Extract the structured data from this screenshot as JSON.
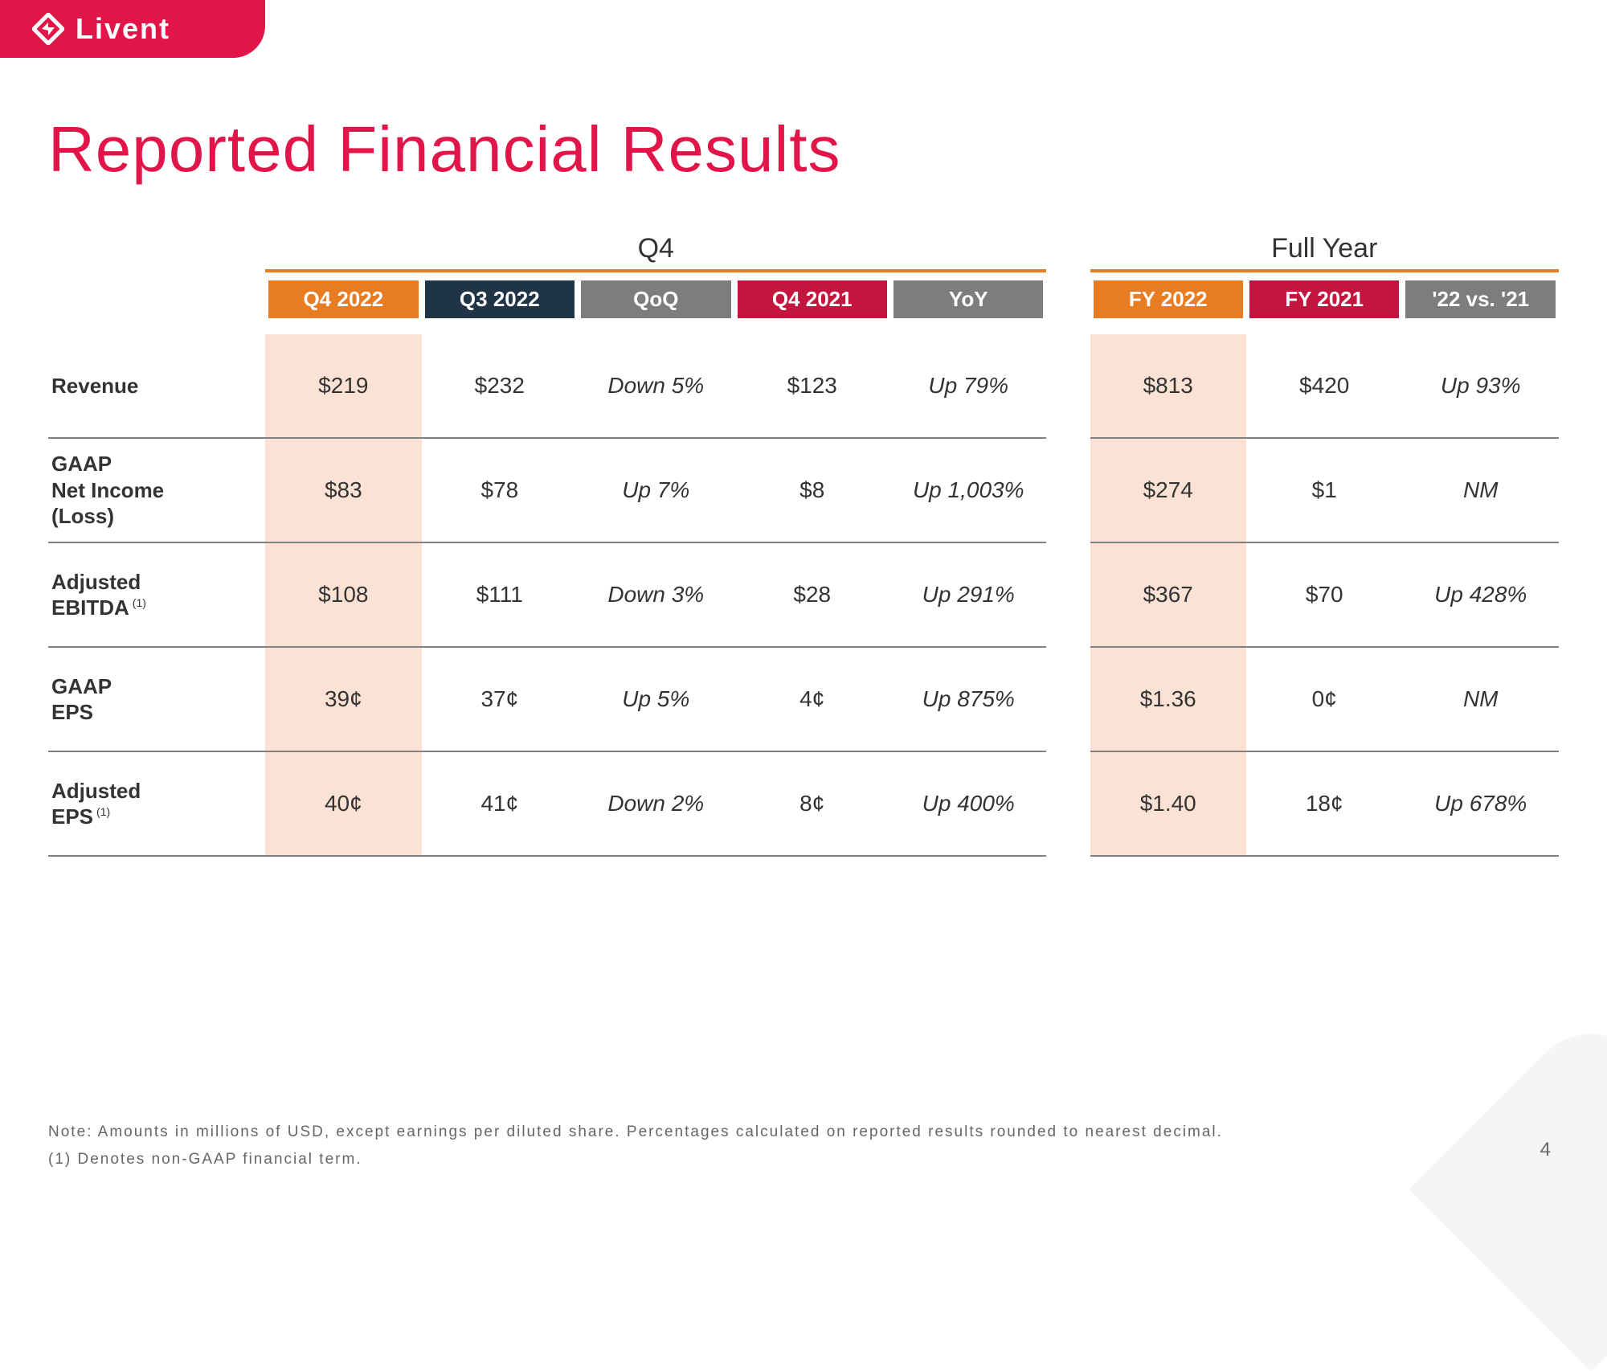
{
  "brand": {
    "name": "Livent"
  },
  "colors": {
    "brand": "#e21549",
    "orange": "#e77c22",
    "navy": "#203448",
    "gray": "#7d7d7d",
    "crimson": "#c3163f",
    "peach": "#fbe2d4",
    "text": "#333333"
  },
  "title": "Reported Financial Results",
  "sections": {
    "q4": "Q4",
    "fy": "Full Year"
  },
  "columns": {
    "q4": [
      {
        "label": "Q4 2022",
        "bg": "#e77c22"
      },
      {
        "label": "Q3 2022",
        "bg": "#203448"
      },
      {
        "label": "QoQ",
        "bg": "#7d7d7d"
      },
      {
        "label": "Q4 2021",
        "bg": "#c3163f"
      },
      {
        "label": "YoY",
        "bg": "#7d7d7d"
      }
    ],
    "fy": [
      {
        "label": "FY 2022",
        "bg": "#e77c22"
      },
      {
        "label": "FY 2021",
        "bg": "#c3163f"
      },
      {
        "label": "'22 vs. '21",
        "bg": "#7d7d7d"
      }
    ]
  },
  "rows": [
    {
      "label": "Revenue",
      "sup": "",
      "q4": [
        "$219",
        "$232",
        "Down 5%",
        "$123",
        "Up 79%"
      ],
      "fy": [
        "$813",
        "$420",
        "Up 93%"
      ]
    },
    {
      "label": "GAAP\nNet Income\n(Loss)",
      "sup": "",
      "q4": [
        "$83",
        "$78",
        "Up 7%",
        "$8",
        "Up 1,003%"
      ],
      "fy": [
        "$274",
        "$1",
        "NM"
      ]
    },
    {
      "label": "Adjusted\nEBITDA",
      "sup": "(1)",
      "q4": [
        "$108",
        "$111",
        "Down 3%",
        "$28",
        "Up 291%"
      ],
      "fy": [
        "$367",
        "$70",
        "Up 428%"
      ]
    },
    {
      "label": "GAAP\nEPS",
      "sup": "",
      "q4": [
        "39¢",
        "37¢",
        "Up 5%",
        "4¢",
        "Up 875%"
      ],
      "fy": [
        "$1.36",
        "0¢",
        "NM"
      ]
    },
    {
      "label": "Adjusted\nEPS",
      "sup": "(1)",
      "q4": [
        "40¢",
        "41¢",
        "Down 2%",
        "8¢",
        "Up 400%"
      ],
      "fy": [
        "$1.40",
        "18¢",
        "Up 678%"
      ]
    }
  ],
  "italic_cols_q4": [
    2,
    4
  ],
  "italic_cols_fy": [
    2
  ],
  "highlight_cols": {
    "q4": 0,
    "fy": 0
  },
  "notes": {
    "line1": "Note: Amounts in millions of USD, except earnings per diluted share.  Percentages calculated on reported results rounded to nearest decimal.",
    "line2": "(1)   Denotes non-GAAP financial term."
  },
  "page_number": "4"
}
